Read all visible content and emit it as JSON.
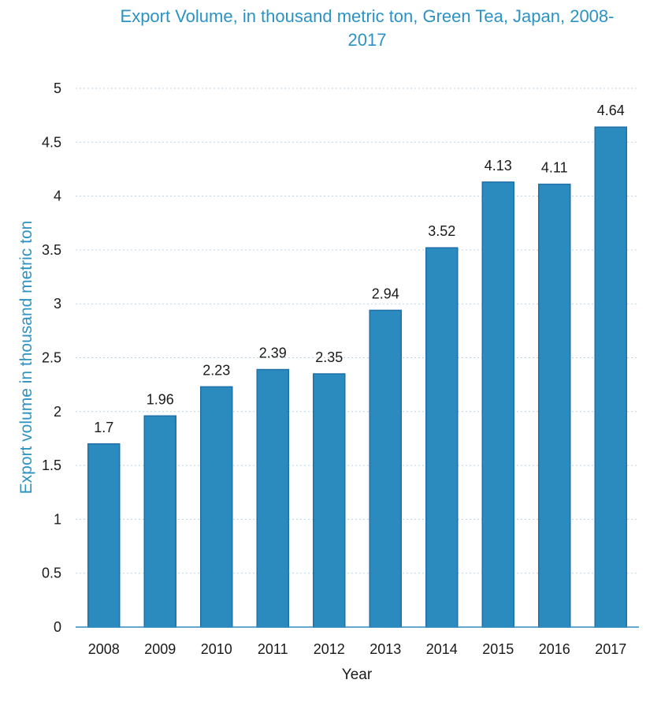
{
  "chart_data": {
    "type": "bar",
    "title_lines": [
      "Export Volume, in thousand metric ton, Green Tea, Japan, 2008-",
      "2017"
    ],
    "xlabel": "Year",
    "ylabel": "Export volume in thousand metric ton",
    "categories": [
      "2008",
      "2009",
      "2010",
      "2011",
      "2012",
      "2013",
      "2014",
      "2015",
      "2016",
      "2017"
    ],
    "values": [
      1.7,
      1.96,
      2.23,
      2.39,
      2.35,
      2.94,
      3.52,
      4.13,
      4.11,
      4.64
    ],
    "data_labels": [
      "1.7",
      "1.96",
      "2.23",
      "2.39",
      "2.35",
      "2.94",
      "3.52",
      "4.13",
      "4.11",
      "4.64"
    ],
    "ylim": [
      0,
      5
    ],
    "yticks": [
      0,
      0.5,
      1,
      1.5,
      2,
      2.5,
      3,
      3.5,
      4,
      4.5,
      5
    ],
    "ytick_labels": [
      "0",
      "0.5",
      "1",
      "1.5",
      "2",
      "2.5",
      "3",
      "3.5",
      "4",
      "4.5",
      "5"
    ],
    "grid": true,
    "legend": "none"
  },
  "colors": {
    "bar": "#2b8bbf",
    "title": "#2b93c4",
    "ylabel": "#2b93c4",
    "xlabel": "#1a1a1a"
  }
}
